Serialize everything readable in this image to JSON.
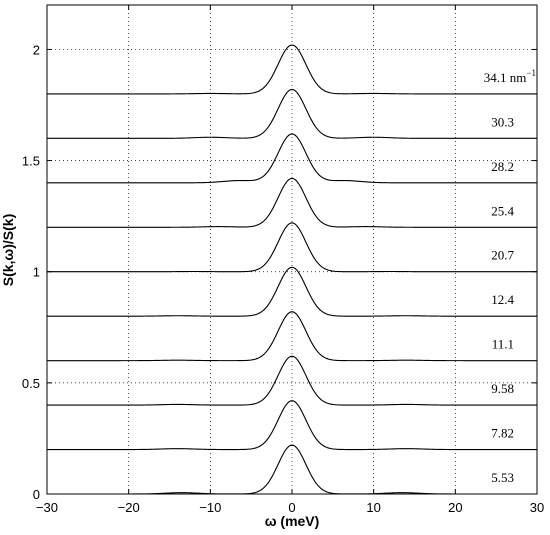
{
  "chart_data": {
    "type": "line",
    "xlabel": "ω (meV)",
    "ylabel": "S(k,ω)/S(k)",
    "xlim": [
      -30,
      30
    ],
    "ylim": [
      0,
      2.2
    ],
    "xticks": [
      -30,
      -20,
      -10,
      0,
      10,
      20,
      30
    ],
    "yticks": [
      0,
      0.5,
      1,
      1.5,
      2
    ],
    "ytick_labels": [
      "0",
      "0.5",
      "1",
      "1.5",
      "2"
    ],
    "grid": true,
    "series": [
      {
        "name": "5.53",
        "offset": 0.0,
        "peak": 0.22,
        "width": 1.7,
        "side_omega": 13.5,
        "side_height": 0.006
      },
      {
        "name": "7.82",
        "offset": 0.2,
        "peak": 0.22,
        "width": 1.7,
        "side_omega": 14.0,
        "side_height": 0.004
      },
      {
        "name": "9.58",
        "offset": 0.4,
        "peak": 0.22,
        "width": 1.7,
        "side_omega": 14.0,
        "side_height": 0.003
      },
      {
        "name": "11.1",
        "offset": 0.6,
        "peak": 0.22,
        "width": 1.7,
        "side_omega": 14.0,
        "side_height": 0.002
      },
      {
        "name": "12.4",
        "offset": 0.8,
        "peak": 0.22,
        "width": 1.7,
        "side_omega": 14.0,
        "side_height": 0.002
      },
      {
        "name": "20.7",
        "offset": 1.0,
        "peak": 0.22,
        "width": 1.7,
        "side_omega": 12.0,
        "side_height": 0.001
      },
      {
        "name": "25.4",
        "offset": 1.2,
        "peak": 0.22,
        "width": 1.7,
        "side_omega": 9.0,
        "side_height": 0.003
      },
      {
        "name": "28.2",
        "offset": 1.4,
        "peak": 0.22,
        "width": 1.7,
        "side_omega": 6.5,
        "side_height": 0.01
      },
      {
        "name": "30.3",
        "offset": 1.6,
        "peak": 0.22,
        "width": 1.7,
        "side_omega": 10.0,
        "side_height": 0.005
      },
      {
        "name": "34.1",
        "offset": 1.8,
        "peak": 0.22,
        "width": 1.7,
        "side_omega": 10.0,
        "side_height": 0.002
      }
    ],
    "curve_labels": [
      "5.53",
      "7.82",
      "9.58",
      "11.1",
      "12.4",
      "20.7",
      "25.4",
      "28.2",
      "30.3",
      "34.1 nm"
    ],
    "top_label_superscript": "−1"
  }
}
